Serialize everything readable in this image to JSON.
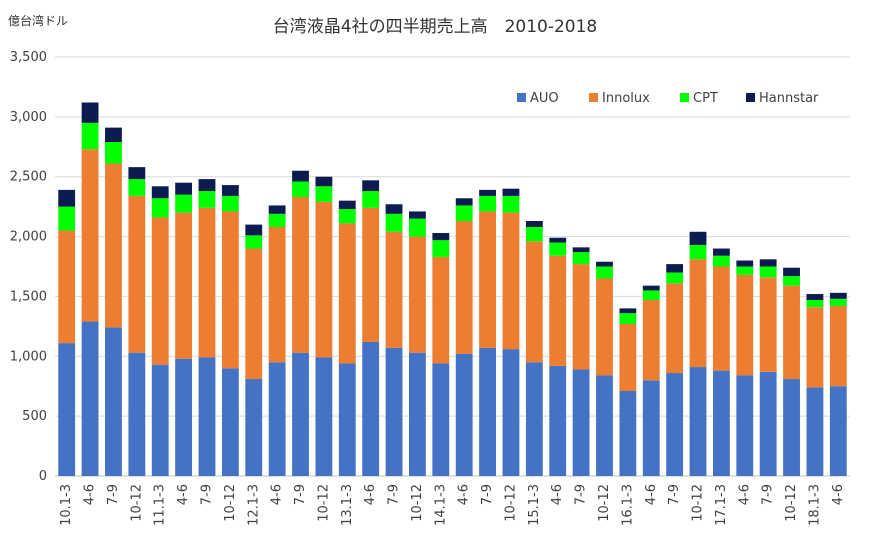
{
  "chart_data": {
    "type": "bar",
    "stacked": true,
    "title": "台湾液晶4社の四半期売上高　2010-2018",
    "unit_label": "億台湾ドル",
    "xlabel": "",
    "ylabel": "",
    "ylim": [
      0,
      3500
    ],
    "yticks": [
      0,
      500,
      1000,
      1500,
      2000,
      2500,
      3000,
      3500
    ],
    "ytick_labels": [
      "0",
      "500",
      "1,000",
      "1,500",
      "2,000",
      "2,500",
      "3,000",
      "3,500"
    ],
    "grid": true,
    "legend_position": "top-right",
    "categories": [
      "10.1-3",
      "4-6",
      "7-9",
      "10-12",
      "11.1-3",
      "4-6",
      "7-9",
      "10-12",
      "12.1-3",
      "4-6",
      "7-9",
      "10-12",
      "13.1-3",
      "4-6",
      "7-9",
      "10-12",
      "14.1-3",
      "4-6",
      "7-9",
      "10-12",
      "15.1-3",
      "4-6",
      "7-9",
      "10-12",
      "16.1-3",
      "4-6",
      "7-9",
      "10-12",
      "17.1-3",
      "4-6",
      "7-9",
      "10-12",
      "18.1-3",
      "4-6"
    ],
    "series": [
      {
        "name": "AUO",
        "color": "#4472C4",
        "values": [
          1110,
          1290,
          1240,
          1030,
          930,
          980,
          990,
          900,
          810,
          950,
          1030,
          990,
          940,
          1120,
          1070,
          1030,
          940,
          1020,
          1070,
          1060,
          950,
          920,
          890,
          840,
          710,
          800,
          860,
          910,
          880,
          840,
          870,
          810,
          740,
          750
        ]
      },
      {
        "name": "Innolux",
        "color": "#ED7D31",
        "values": [
          940,
          1440,
          1370,
          1310,
          1230,
          1220,
          1250,
          1310,
          1090,
          1130,
          1300,
          1300,
          1170,
          1120,
          970,
          970,
          890,
          1110,
          1140,
          1140,
          1010,
          920,
          880,
          810,
          560,
          670,
          750,
          900,
          870,
          840,
          790,
          780,
          670,
          670
        ]
      },
      {
        "name": "CPT",
        "color": "#00FF00",
        "values": [
          200,
          220,
          180,
          140,
          160,
          150,
          140,
          130,
          110,
          110,
          130,
          130,
          120,
          140,
          150,
          150,
          140,
          130,
          130,
          140,
          120,
          110,
          100,
          100,
          90,
          80,
          90,
          120,
          90,
          70,
          90,
          80,
          60,
          60
        ]
      },
      {
        "name": "Hannstar",
        "color": "#0C1C50",
        "values": [
          140,
          170,
          120,
          100,
          100,
          100,
          100,
          90,
          90,
          70,
          90,
          80,
          70,
          90,
          80,
          60,
          60,
          60,
          50,
          60,
          50,
          40,
          40,
          40,
          40,
          40,
          70,
          110,
          60,
          50,
          60,
          70,
          50,
          50
        ]
      }
    ]
  }
}
